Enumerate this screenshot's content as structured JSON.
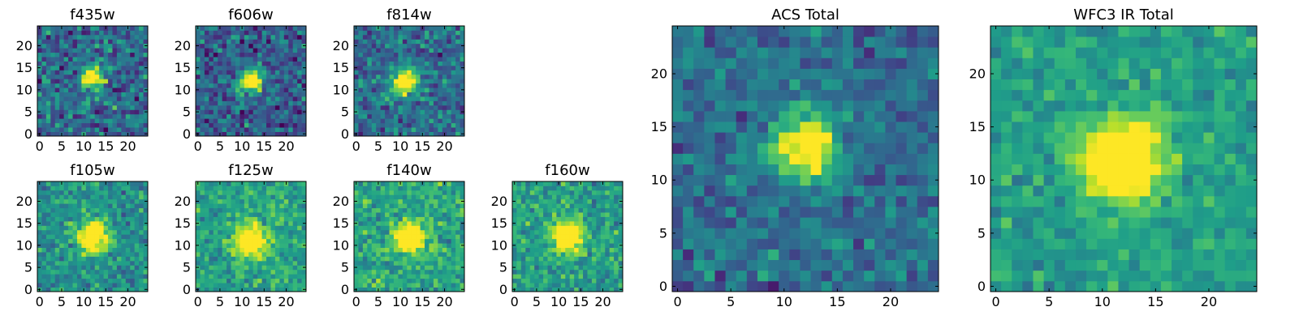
{
  "chart_data": [
    {
      "type": "heatmap",
      "title": "f435w",
      "xticks": [
        "0",
        "5",
        "10",
        "15",
        "20"
      ],
      "yticks": [
        "0",
        "5",
        "10",
        "15",
        "20"
      ],
      "xlim": [
        -0.5,
        24.5
      ],
      "ylim": [
        -0.5,
        24.5
      ],
      "peak": [
        12,
        13
      ],
      "width": 1.8,
      "noise": 0.42,
      "bg": 0.34,
      "seed": 11
    },
    {
      "type": "heatmap",
      "title": "f606w",
      "xticks": [
        "0",
        "5",
        "10",
        "15",
        "20"
      ],
      "yticks": [
        "0",
        "5",
        "10",
        "15",
        "20"
      ],
      "xlim": [
        -0.5,
        24.5
      ],
      "ylim": [
        -0.5,
        24.5
      ],
      "peak": [
        12,
        12
      ],
      "width": 1.9,
      "noise": 0.38,
      "bg": 0.3,
      "seed": 23
    },
    {
      "type": "heatmap",
      "title": "f814w",
      "xticks": [
        "0",
        "5",
        "10",
        "15",
        "20"
      ],
      "yticks": [
        "0",
        "5",
        "10",
        "15",
        "20"
      ],
      "xlim": [
        -0.5,
        24.5
      ],
      "ylim": [
        -0.5,
        24.5
      ],
      "peak": [
        11,
        12
      ],
      "width": 2.1,
      "noise": 0.36,
      "bg": 0.36,
      "seed": 37
    },
    {
      "type": "heatmap",
      "title": "f105w",
      "xticks": [
        "0",
        "5",
        "10",
        "15",
        "20"
      ],
      "yticks": [
        "0",
        "5",
        "10",
        "15",
        "20"
      ],
      "xlim": [
        -0.5,
        24.5
      ],
      "ylim": [
        -0.5,
        24.5
      ],
      "peak": [
        12,
        12
      ],
      "width": 2.4,
      "noise": 0.3,
      "bg": 0.5,
      "seed": 41
    },
    {
      "type": "heatmap",
      "title": "f125w",
      "xticks": [
        "0",
        "5",
        "10",
        "15",
        "20"
      ],
      "yticks": [
        "0",
        "5",
        "10",
        "15",
        "20"
      ],
      "xlim": [
        -0.5,
        24.5
      ],
      "ylim": [
        -0.5,
        24.5
      ],
      "peak": [
        12,
        11
      ],
      "width": 2.4,
      "noise": 0.28,
      "bg": 0.58,
      "seed": 53
    },
    {
      "type": "heatmap",
      "title": "f140w",
      "xticks": [
        "0",
        "5",
        "10",
        "15",
        "20"
      ],
      "yticks": [
        "0",
        "5",
        "10",
        "15",
        "20"
      ],
      "xlim": [
        -0.5,
        24.5
      ],
      "ylim": [
        -0.5,
        24.5
      ],
      "peak": [
        12,
        12
      ],
      "width": 2.2,
      "noise": 0.3,
      "bg": 0.6,
      "seed": 67
    },
    {
      "type": "heatmap",
      "title": "f160w",
      "xticks": [
        "0",
        "5",
        "10",
        "15",
        "20"
      ],
      "yticks": [
        "0",
        "5",
        "10",
        "15",
        "20"
      ],
      "xlim": [
        -0.5,
        24.5
      ],
      "ylim": [
        -0.5,
        24.5
      ],
      "peak": [
        12,
        12
      ],
      "width": 2.3,
      "noise": 0.3,
      "bg": 0.56,
      "seed": 79
    },
    {
      "type": "heatmap",
      "title": "ACS Total",
      "xticks": [
        "0",
        "5",
        "10",
        "15",
        "20"
      ],
      "yticks": [
        "0",
        "5",
        "10",
        "15",
        "20"
      ],
      "xlim": [
        -0.5,
        24.5
      ],
      "ylim": [
        -0.5,
        24.5
      ],
      "peak": [
        12,
        13
      ],
      "width": 2.0,
      "noise": 0.28,
      "bg": 0.36,
      "seed": 97
    },
    {
      "type": "heatmap",
      "title": "WFC3 IR Total",
      "xticks": [
        "0",
        "5",
        "10",
        "15",
        "20"
      ],
      "yticks": [
        "0",
        "5",
        "10",
        "15",
        "20"
      ],
      "xlim": [
        -0.5,
        24.5
      ],
      "ylim": [
        -0.5,
        24.5
      ],
      "peak": [
        12,
        12
      ],
      "width": 2.6,
      "noise": 0.22,
      "bg": 0.56,
      "seed": 113
    }
  ],
  "colormap": "viridis",
  "colors": {
    "frame": "#000000",
    "text": "#000000",
    "background": "#ffffff"
  }
}
